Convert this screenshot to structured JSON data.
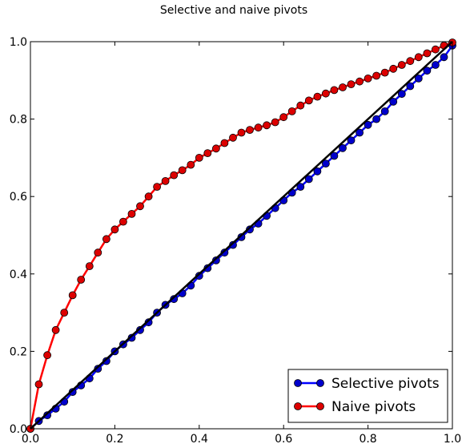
{
  "chart_data": {
    "type": "line",
    "title": "Selective and naive pivots",
    "xlabel": "",
    "ylabel": "",
    "xlim": [
      0.0,
      1.0
    ],
    "ylim": [
      0.0,
      1.0
    ],
    "xticks": [
      "0.0",
      "0.2",
      "0.4",
      "0.6",
      "0.8",
      "1.0"
    ],
    "yticks": [
      "0.0",
      "0.2",
      "0.4",
      "0.6",
      "0.8",
      "1.0"
    ],
    "grid": false,
    "legend_position": "bottom-right",
    "reference_line": {
      "x": [
        0.0,
        1.0
      ],
      "y": [
        0.0,
        1.0
      ],
      "color": "#000000"
    },
    "series": [
      {
        "name": "Selective pivots",
        "color": "#0000ff",
        "marker_color": "#0000cc",
        "x": [
          0.0,
          0.02,
          0.04,
          0.06,
          0.08,
          0.1,
          0.12,
          0.14,
          0.16,
          0.18,
          0.2,
          0.22,
          0.24,
          0.26,
          0.28,
          0.3,
          0.32,
          0.34,
          0.36,
          0.38,
          0.4,
          0.42,
          0.44,
          0.46,
          0.48,
          0.5,
          0.52,
          0.54,
          0.56,
          0.58,
          0.6,
          0.62,
          0.64,
          0.66,
          0.68,
          0.7,
          0.72,
          0.74,
          0.76,
          0.78,
          0.8,
          0.82,
          0.84,
          0.86,
          0.88,
          0.9,
          0.92,
          0.94,
          0.96,
          0.98,
          1.0
        ],
        "y": [
          0.0,
          0.02,
          0.035,
          0.052,
          0.07,
          0.095,
          0.112,
          0.13,
          0.155,
          0.175,
          0.2,
          0.218,
          0.235,
          0.255,
          0.275,
          0.3,
          0.32,
          0.335,
          0.35,
          0.37,
          0.395,
          0.415,
          0.435,
          0.455,
          0.475,
          0.495,
          0.515,
          0.53,
          0.55,
          0.57,
          0.59,
          0.61,
          0.625,
          0.645,
          0.665,
          0.685,
          0.705,
          0.725,
          0.745,
          0.765,
          0.785,
          0.8,
          0.82,
          0.845,
          0.865,
          0.885,
          0.905,
          0.925,
          0.94,
          0.96,
          0.99
        ]
      },
      {
        "name": "Naive pivots",
        "color": "#ff0000",
        "marker_color": "#dd0000",
        "x": [
          0.0,
          0.02,
          0.04,
          0.06,
          0.08,
          0.1,
          0.12,
          0.14,
          0.16,
          0.18,
          0.2,
          0.22,
          0.24,
          0.26,
          0.28,
          0.3,
          0.32,
          0.34,
          0.36,
          0.38,
          0.4,
          0.42,
          0.44,
          0.46,
          0.48,
          0.5,
          0.52,
          0.54,
          0.56,
          0.58,
          0.6,
          0.62,
          0.64,
          0.66,
          0.68,
          0.7,
          0.72,
          0.74,
          0.76,
          0.78,
          0.8,
          0.82,
          0.84,
          0.86,
          0.88,
          0.9,
          0.92,
          0.94,
          0.96,
          0.98,
          1.0
        ],
        "y": [
          0.0,
          0.115,
          0.19,
          0.255,
          0.3,
          0.345,
          0.385,
          0.42,
          0.455,
          0.49,
          0.515,
          0.535,
          0.555,
          0.575,
          0.6,
          0.625,
          0.64,
          0.655,
          0.668,
          0.682,
          0.7,
          0.712,
          0.724,
          0.738,
          0.752,
          0.765,
          0.772,
          0.778,
          0.784,
          0.792,
          0.805,
          0.82,
          0.835,
          0.848,
          0.858,
          0.866,
          0.875,
          0.882,
          0.89,
          0.897,
          0.905,
          0.912,
          0.92,
          0.93,
          0.94,
          0.95,
          0.96,
          0.97,
          0.98,
          0.99,
          0.998
        ]
      }
    ]
  }
}
